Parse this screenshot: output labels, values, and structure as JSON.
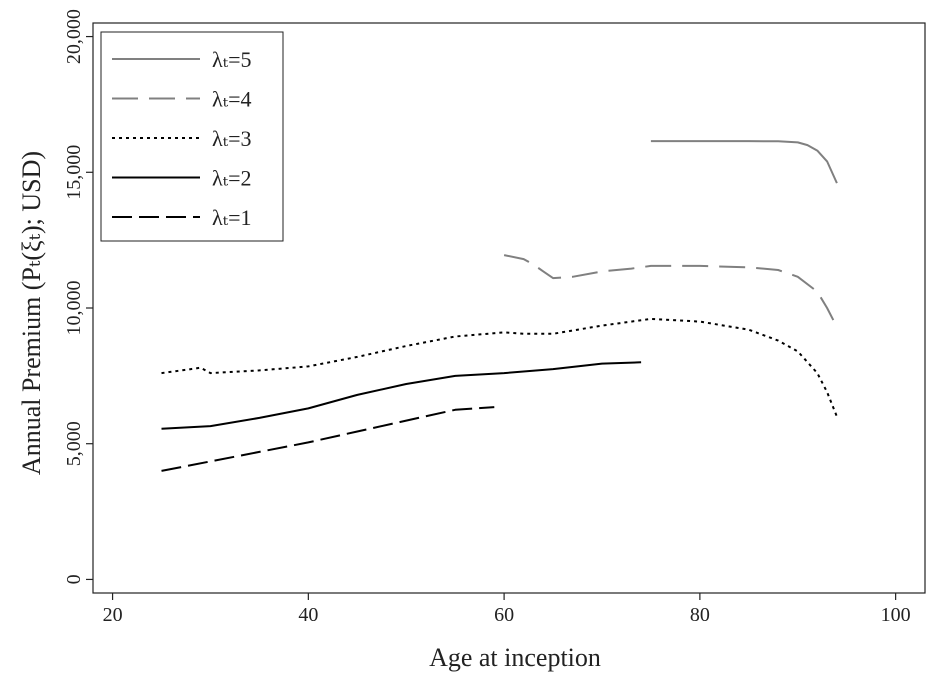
{
  "chart_data": {
    "type": "line",
    "title": "",
    "xlabel": "Age at inception",
    "ylabel": "Annual Premium  (Pₜ(ξₜ); USD)",
    "xlim": [
      18,
      103
    ],
    "ylim": [
      -500,
      20500
    ],
    "xticks": [
      20,
      40,
      60,
      80,
      100
    ],
    "yticks": [
      0,
      5000,
      10000,
      15000,
      20000
    ],
    "ytick_labels": [
      "0",
      "5,000",
      "10,000",
      "15,000",
      "20,000"
    ],
    "grid": false,
    "legend_position": "top-left",
    "series": [
      {
        "name": "λₜ=5",
        "color": "#808080",
        "dash": "solid",
        "x": [
          75,
          80,
          85,
          88,
          90,
          91,
          92,
          93,
          94
        ],
        "y": [
          16150,
          16150,
          16150,
          16140,
          16100,
          16000,
          15800,
          15400,
          14600
        ]
      },
      {
        "name": "λₜ=4",
        "color": "#808080",
        "dash": "longdash",
        "x": [
          60,
          62,
          63,
          64,
          65,
          67,
          70,
          73,
          75,
          80,
          85,
          88,
          90,
          92,
          93,
          94
        ],
        "y": [
          11950,
          11800,
          11600,
          11350,
          11100,
          11150,
          11350,
          11450,
          11550,
          11550,
          11500,
          11400,
          11150,
          10600,
          10000,
          9300
        ]
      },
      {
        "name": "λₜ=3",
        "color": "#000000",
        "dash": "dot",
        "x": [
          25,
          28,
          29,
          30,
          35,
          40,
          45,
          50,
          55,
          60,
          62,
          65,
          70,
          75,
          80,
          85,
          88,
          90,
          92,
          93,
          94
        ],
        "y": [
          7600,
          7750,
          7800,
          7600,
          7700,
          7850,
          8200,
          8600,
          8950,
          9100,
          9050,
          9050,
          9350,
          9600,
          9500,
          9200,
          8800,
          8400,
          7600,
          6900,
          6000
        ]
      },
      {
        "name": "λₜ=2",
        "color": "#000000",
        "dash": "solid",
        "x": [
          25,
          30,
          35,
          40,
          45,
          50,
          55,
          60,
          65,
          70,
          74
        ],
        "y": [
          5550,
          5650,
          5950,
          6300,
          6800,
          7200,
          7500,
          7600,
          7750,
          7950,
          8000
        ]
      },
      {
        "name": "λₜ=1",
        "color": "#000000",
        "dash": "dash",
        "x": [
          25,
          30,
          35,
          40,
          45,
          50,
          55,
          59
        ],
        "y": [
          4000,
          4350,
          4700,
          5050,
          5450,
          5850,
          6250,
          6350
        ]
      }
    ]
  }
}
